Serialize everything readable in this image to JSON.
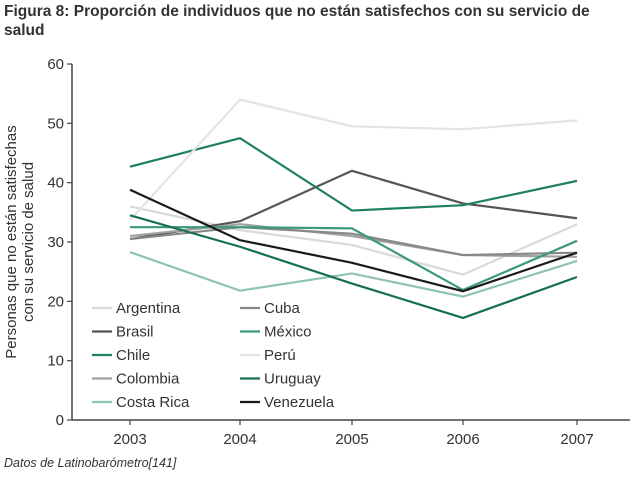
{
  "chart_data": {
    "type": "line",
    "title": "Figura 8: Proporción de individuos que no están satisfechos con su servicio de salud",
    "xlabel": "",
    "ylabel": "Personas que no están satisfechas con su servicio de salud",
    "x": [
      "2003",
      "2004",
      "2005",
      "2006",
      "2007"
    ],
    "ylim": [
      0,
      60
    ],
    "yticks": [
      0,
      10,
      20,
      30,
      40,
      50,
      60
    ],
    "grid": false,
    "legend": "bottom-left inside",
    "source": "Datos de Latinobarómetro[141]",
    "series": [
      {
        "name": "Argentina",
        "color": "#d9d9d9",
        "values": [
          36,
          32,
          29.5,
          24.5,
          33
        ]
      },
      {
        "name": "Brasil",
        "color": "#555555",
        "values": [
          30.5,
          33.5,
          42,
          36.5,
          34
        ]
      },
      {
        "name": "Chile",
        "color": "#1f8060",
        "values": [
          42.7,
          47.5,
          35.3,
          36.2,
          40.3
        ]
      },
      {
        "name": "Colombia",
        "color": "#a0a0a0",
        "values": [
          31,
          33,
          31,
          27.8,
          27.5
        ]
      },
      {
        "name": "Costa Rica",
        "color": "#8fc4ac",
        "values": [
          28.3,
          21.8,
          24.7,
          20.8,
          26.8
        ]
      },
      {
        "name": "Cuba",
        "color": "#888888",
        "values": [
          30.5,
          32.5,
          31.4,
          27.8,
          28.2
        ]
      },
      {
        "name": "México",
        "color": "#3a9a78",
        "values": [
          32.5,
          32.5,
          32.3,
          21.9,
          30.2
        ]
      },
      {
        "name": "Perú",
        "color": "#e4e4e4",
        "values": [
          33.7,
          54,
          49.5,
          49,
          50.5
        ]
      },
      {
        "name": "Uruguay",
        "color": "#16704f",
        "values": [
          34.5,
          29.2,
          23,
          17.2,
          24.1
        ]
      },
      {
        "name": "Venezuela",
        "color": "#1a1a1a",
        "values": [
          38.8,
          30.3,
          26.5,
          21.7,
          28.2
        ]
      }
    ]
  }
}
